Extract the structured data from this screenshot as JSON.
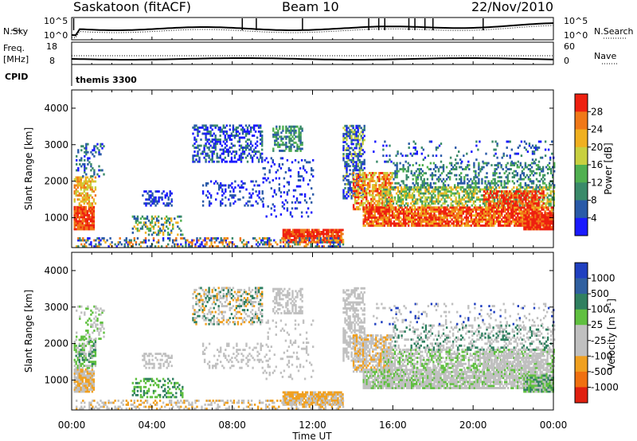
{
  "header": {
    "station": "Saskatoon (fitACF)",
    "beam": "Beam 10",
    "date": "22/Nov/2010"
  },
  "top_strip": {
    "nsky_label": "N.Sky",
    "nsky_ticks": [
      "10^5",
      "10^0"
    ],
    "nsearch_label": "N.Search",
    "nsearch_ticks": [
      "10^5",
      "10^0"
    ],
    "freq_label": "Freq.",
    "freq_unit": "[MHz]",
    "freq_ticks": [
      "18",
      "8"
    ],
    "nave_label": "Nave",
    "nave_ticks": [
      "60",
      "0"
    ],
    "cpid_label": "CPID",
    "cpid_value": "themis 3300"
  },
  "chart_data": [
    {
      "type": "heatmap",
      "name": "power-panel",
      "ylabel": "Slant Range [km]",
      "xlabel": "",
      "xlim": [
        0,
        24
      ],
      "ylim": [
        180,
        4500
      ],
      "yticks": [
        "1000",
        "2000",
        "3000",
        "4000"
      ],
      "colorbar": {
        "label": "Power [dB]",
        "ticks": [
          "4",
          "8",
          "12",
          "16",
          "20",
          "24",
          "28"
        ],
        "colors": [
          "#1a1aff",
          "#2a5aa8",
          "#3a8a6a",
          "#50b050",
          "#c8d040",
          "#f0b020",
          "#f07818",
          "#ee2010"
        ]
      }
    },
    {
      "type": "heatmap",
      "name": "velocity-panel",
      "ylabel": "Slant Range [km]",
      "xlabel": "Time UT",
      "xlim": [
        0,
        24
      ],
      "ylim": [
        180,
        4500
      ],
      "yticks": [
        "1000",
        "2000",
        "3000",
        "4000"
      ],
      "xticks": [
        "00:00",
        "04:00",
        "08:00",
        "12:00",
        "16:00",
        "20:00",
        "00:00"
      ],
      "colorbar": {
        "label": "Velocity [m s",
        "label_sup": "-1",
        "label_close": "]",
        "ticks": [
          "1000",
          "500",
          "100",
          "25",
          "-25",
          "-100",
          "-500",
          "-1000"
        ],
        "colors": [
          "#2040c0",
          "#3060a0",
          "#308060",
          "#60c040",
          "#c0c0c0",
          "#c0c0c0",
          "#f0a020",
          "#f07010",
          "#e02010"
        ]
      }
    }
  ]
}
